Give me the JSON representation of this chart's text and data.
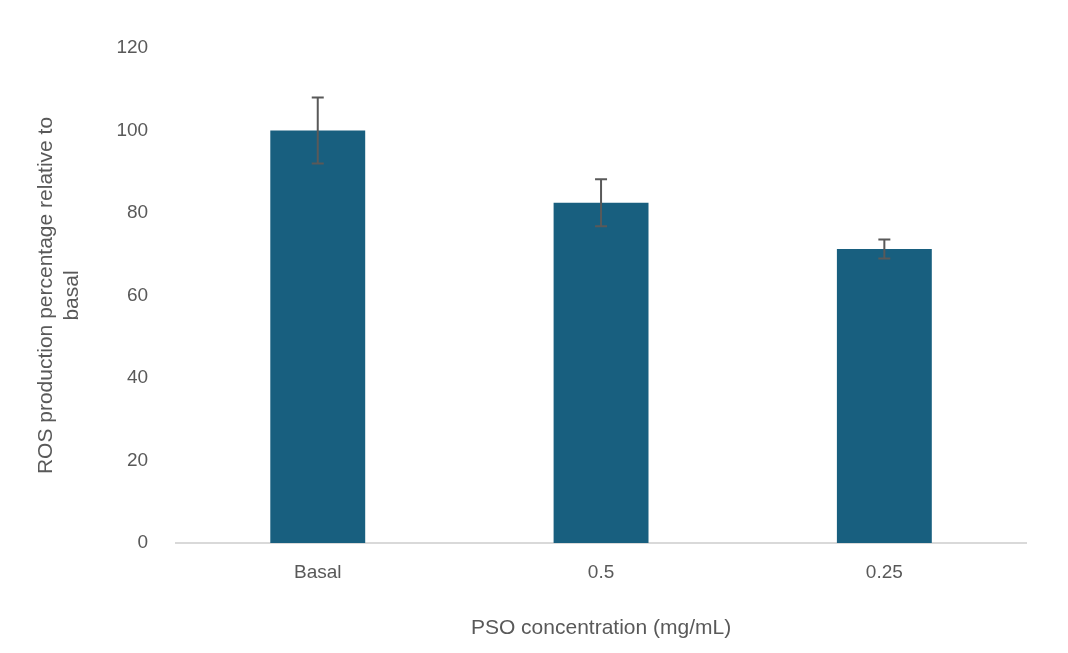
{
  "chart_data": {
    "type": "bar",
    "xlabel": "PSO concentration (mg/mL)",
    "ylabel": "ROS production percentage relative to basal",
    "categories": [
      "Basal",
      "0.5",
      "0.25"
    ],
    "values": [
      100,
      82.5,
      71.3
    ],
    "errors": [
      8,
      5.7,
      2.3
    ],
    "color": "#185f7f",
    "ylim": [
      0,
      120
    ],
    "yticks": [
      0,
      20,
      40,
      60,
      80,
      100,
      120
    ],
    "grid": false,
    "legend": false
  }
}
